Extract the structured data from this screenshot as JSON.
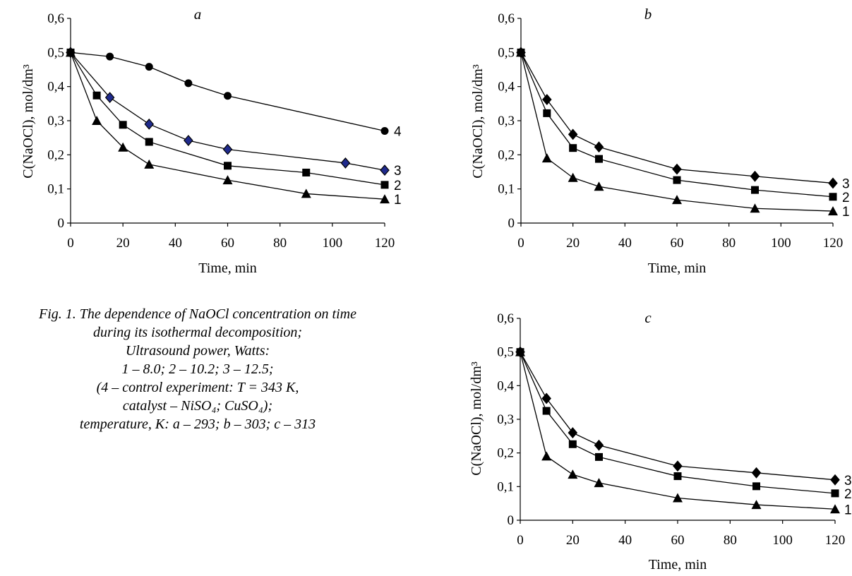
{
  "caption": {
    "lines": [
      "Fig. 1. The dependence of NaOCl concentration on time",
      "during its isothermal decomposition;",
      "Ultrasound power, Watts:",
      "1 – 8.0; 2 – 10.2; 3 – 12.5;",
      "(4 – control experiment: T = 343 K,",
      "catalyst – NiSO₄; CuSO₄);",
      "temperature, K: a – 293; b – 303; c – 313"
    ]
  },
  "chart_data": [
    {
      "type": "line",
      "panel": "a",
      "title": "a",
      "xlabel": "Time, min",
      "ylabel": "C(NaOCl), mol/dm³",
      "xlim": [
        0,
        120
      ],
      "ylim": [
        0,
        0.6
      ],
      "xticks": [
        "0",
        "20",
        "40",
        "60",
        "80",
        "100",
        "120"
      ],
      "yticks": [
        "0",
        "0,1",
        "0,2",
        "0,3",
        "0,4",
        "0,5",
        "0,6"
      ],
      "grid": false,
      "series": [
        {
          "name": "1",
          "marker": "triangle",
          "color": "#000000",
          "x": [
            0,
            10,
            20,
            30,
            60,
            90,
            120
          ],
          "y": [
            0.5,
            0.3,
            0.222,
            0.172,
            0.126,
            0.086,
            0.07
          ]
        },
        {
          "name": "2",
          "marker": "square",
          "color": "#000000",
          "x": [
            0,
            10,
            20,
            30,
            60,
            90,
            120
          ],
          "y": [
            0.5,
            0.374,
            0.288,
            0.238,
            0.168,
            0.148,
            0.112
          ]
        },
        {
          "name": "3",
          "marker": "diamond",
          "color": "#1f2a8c",
          "x": [
            0,
            15,
            30,
            45,
            60,
            105,
            120
          ],
          "y": [
            0.5,
            0.368,
            0.29,
            0.242,
            0.216,
            0.176,
            0.155
          ]
        },
        {
          "name": "4",
          "marker": "circle",
          "color": "#000000",
          "x": [
            0,
            15,
            30,
            45,
            60,
            120
          ],
          "y": [
            0.5,
            0.488,
            0.458,
            0.41,
            0.373,
            0.27
          ]
        }
      ]
    },
    {
      "type": "line",
      "panel": "b",
      "title": "b",
      "xlabel": "Time, min",
      "ylabel": "C(NaOCl), mol/dm³",
      "xlim": [
        0,
        120
      ],
      "ylim": [
        0,
        0.6
      ],
      "xticks": [
        "0",
        "20",
        "40",
        "60",
        "80",
        "100",
        "120"
      ],
      "yticks": [
        "0",
        "0,1",
        "0,2",
        "0,3",
        "0,4",
        "0,5",
        "0,6"
      ],
      "grid": false,
      "series": [
        {
          "name": "1",
          "marker": "triangle",
          "color": "#000000",
          "x": [
            0,
            10,
            20,
            30,
            60,
            90,
            120
          ],
          "y": [
            0.5,
            0.19,
            0.133,
            0.107,
            0.068,
            0.043,
            0.035
          ]
        },
        {
          "name": "2",
          "marker": "square",
          "color": "#000000",
          "x": [
            0,
            10,
            20,
            30,
            60,
            90,
            120
          ],
          "y": [
            0.5,
            0.322,
            0.22,
            0.188,
            0.126,
            0.097,
            0.077
          ]
        },
        {
          "name": "3",
          "marker": "diamond",
          "color": "#000000",
          "x": [
            0,
            10,
            20,
            30,
            60,
            90,
            120
          ],
          "y": [
            0.5,
            0.362,
            0.26,
            0.223,
            0.158,
            0.137,
            0.117
          ]
        }
      ]
    },
    {
      "type": "line",
      "panel": "c",
      "title": "c",
      "xlabel": "Time, min",
      "ylabel": "C(NaOCl), mol/dm³",
      "xlim": [
        0,
        120
      ],
      "ylim": [
        0,
        0.6
      ],
      "xticks": [
        "0",
        "20",
        "40",
        "60",
        "80",
        "100",
        "120"
      ],
      "yticks": [
        "0",
        "0,1",
        "0,2",
        "0,3",
        "0,4",
        "0,5",
        "0,6"
      ],
      "grid": false,
      "series": [
        {
          "name": "1",
          "marker": "triangle",
          "color": "#000000",
          "x": [
            0,
            10,
            20,
            30,
            60,
            90,
            120
          ],
          "y": [
            0.5,
            0.19,
            0.136,
            0.111,
            0.066,
            0.046,
            0.033
          ]
        },
        {
          "name": "2",
          "marker": "square",
          "color": "#000000",
          "x": [
            0,
            10,
            20,
            30,
            60,
            90,
            120
          ],
          "y": [
            0.5,
            0.325,
            0.226,
            0.188,
            0.131,
            0.101,
            0.08
          ]
        },
        {
          "name": "3",
          "marker": "diamond",
          "color": "#000000",
          "x": [
            0,
            10,
            20,
            30,
            60,
            90,
            120
          ],
          "y": [
            0.5,
            0.362,
            0.26,
            0.223,
            0.161,
            0.141,
            0.12
          ]
        }
      ]
    }
  ]
}
